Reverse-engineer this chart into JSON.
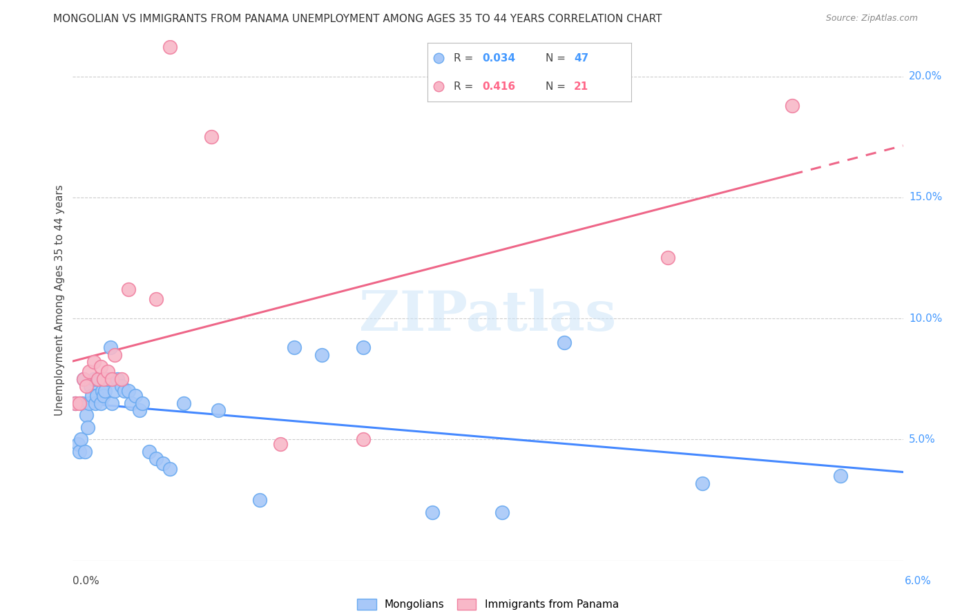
{
  "title": "MONGOLIAN VS IMMIGRANTS FROM PANAMA UNEMPLOYMENT AMONG AGES 35 TO 44 YEARS CORRELATION CHART",
  "source": "Source: ZipAtlas.com",
  "ylabel": "Unemployment Among Ages 35 to 44 years",
  "xmin": 0.0,
  "xmax": 6.0,
  "ymin": 0.0,
  "ymax": 21.5,
  "ytick_vals": [
    5.0,
    10.0,
    15.0,
    20.0
  ],
  "ytick_labels": [
    "5.0%",
    "10.0%",
    "15.0%",
    "20.0%"
  ],
  "mongolian_color": "#a8c8f8",
  "mongolian_edge_color": "#6aaaf0",
  "panama_color": "#f8b8c8",
  "panama_edge_color": "#f080a0",
  "mongolian_line_color": "#4488ff",
  "panama_line_color": "#ee6688",
  "background_color": "#ffffff",
  "legend_blue": "#4499ff",
  "legend_pink": "#ff6688",
  "watermark": "ZIPatlas",
  "mongolian_x": [
    0.02,
    0.04,
    0.05,
    0.06,
    0.07,
    0.08,
    0.09,
    0.1,
    0.11,
    0.12,
    0.13,
    0.14,
    0.15,
    0.16,
    0.17,
    0.18,
    0.2,
    0.21,
    0.22,
    0.23,
    0.25,
    0.27,
    0.28,
    0.3,
    0.32,
    0.35,
    0.37,
    0.4,
    0.42,
    0.45,
    0.48,
    0.5,
    0.55,
    0.6,
    0.65,
    0.7,
    0.8,
    1.05,
    1.35,
    1.6,
    1.8,
    2.1,
    2.6,
    3.1,
    3.55,
    4.55,
    5.55
  ],
  "mongolian_y": [
    6.5,
    4.8,
    4.5,
    5.0,
    6.5,
    7.5,
    4.5,
    6.0,
    5.5,
    6.5,
    7.2,
    6.8,
    7.5,
    6.5,
    6.8,
    7.5,
    6.5,
    7.0,
    6.8,
    7.0,
    7.5,
    8.8,
    6.5,
    7.0,
    7.5,
    7.2,
    7.0,
    7.0,
    6.5,
    6.8,
    6.2,
    6.5,
    4.5,
    4.2,
    4.0,
    3.8,
    6.5,
    6.2,
    2.5,
    8.8,
    8.5,
    8.8,
    2.0,
    2.0,
    9.0,
    3.2,
    3.5
  ],
  "panama_x": [
    0.02,
    0.05,
    0.08,
    0.1,
    0.12,
    0.15,
    0.18,
    0.2,
    0.22,
    0.25,
    0.28,
    0.3,
    0.35,
    0.4,
    0.6,
    0.7,
    1.0,
    1.5,
    2.1,
    4.3,
    5.2
  ],
  "panama_y": [
    6.5,
    6.5,
    7.5,
    7.2,
    7.8,
    8.2,
    7.5,
    8.0,
    7.5,
    7.8,
    7.5,
    8.5,
    7.5,
    11.2,
    10.8,
    21.2,
    17.5,
    4.8,
    5.0,
    12.5,
    18.8
  ]
}
